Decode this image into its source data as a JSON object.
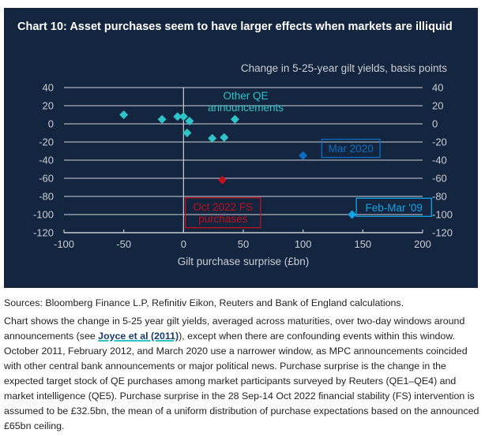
{
  "chart_data": {
    "type": "scatter",
    "title": "Chart 10: Asset purchases seem to have larger effects when markets are illiquid",
    "unit_label": "Change in 5-25-year gilt yields, basis points",
    "xlabel": "Gilt purchase surprise (£bn)",
    "ylabel": "Change in 5-25-year gilt yields, basis points",
    "xlim": [
      -100,
      200
    ],
    "ylim": [
      -120,
      40
    ],
    "x_ticks": [
      -100,
      -50,
      0,
      50,
      100,
      150,
      200
    ],
    "y_ticks": [
      40,
      20,
      0,
      -20,
      -40,
      -60,
      -80,
      -100,
      -120
    ],
    "grid": "horizontal",
    "series": [
      {
        "name": "Other QE announcements",
        "color": "#2ec4c9",
        "label_box": false,
        "points": [
          {
            "x": -50,
            "y": 10
          },
          {
            "x": -18,
            "y": 5
          },
          {
            "x": -5,
            "y": 8
          },
          {
            "x": 0,
            "y": 8
          },
          {
            "x": 5,
            "y": 3
          },
          {
            "x": 3,
            "y": -10
          },
          {
            "x": 24,
            "y": -16
          },
          {
            "x": 34,
            "y": -15
          },
          {
            "x": 43,
            "y": 5
          }
        ]
      },
      {
        "name": "Mar 2020",
        "color": "#0a6fc2",
        "label_box": true,
        "points": [
          {
            "x": 100,
            "y": -35
          }
        ]
      },
      {
        "name": "Feb-Mar '09",
        "color": "#12a5e6",
        "label_box": true,
        "points": [
          {
            "x": 141,
            "y": -100
          }
        ]
      },
      {
        "name": "Oct 2022 FS purchases",
        "color": "#c0101e",
        "label_box": true,
        "points": [
          {
            "x": 32.5,
            "y": -62
          }
        ]
      }
    ],
    "annotations": [
      {
        "series": "Other QE announcements",
        "lines": [
          "Other QE",
          "announcements"
        ],
        "at": {
          "x": 52,
          "y": 25
        },
        "box": false
      },
      {
        "series": "Mar 2020",
        "lines": [
          "Mar 2020"
        ],
        "at": {
          "x": 140,
          "y": -27
        },
        "box": true
      },
      {
        "series": "Feb-Mar '09",
        "lines": [
          "Feb-Mar '09"
        ],
        "at": {
          "x": 176,
          "y": -92
        },
        "box": true
      },
      {
        "series": "Oct 2022 FS purchases",
        "lines": [
          "Oct 2022 FS",
          "purchases"
        ],
        "at": {
          "x": 33,
          "y": -98
        },
        "box": true
      }
    ]
  },
  "notes": {
    "sources": "Sources: Bloomberg Finance L.P, Refinitiv Eikon, Reuters and Bank of England calculations.",
    "body_before_link": "Chart shows the change in 5-25 year gilt yields, averaged across maturities, over two-day windows around announcements (see ",
    "link_text": "Joyce et al (2011)",
    "body_after_link": "), except when there are confounding events within this window. October 2011, February 2012, and March 2020 use a narrower window, as MPC announcements coincided with other central bank announcements or major political news. Purchase surprise is the change in the expected target stock of QE purchases among market participants surveyed by Reuters (QE1–QE4) and market intelligence (QE5). Purchase surprise in the 28 Sep-14 Oct 2022 financial stability (FS) intervention is assumed to be £32.5bn, the mean of a uniform distribution of purchase expectations based on the announced £65bn ceiling."
  }
}
